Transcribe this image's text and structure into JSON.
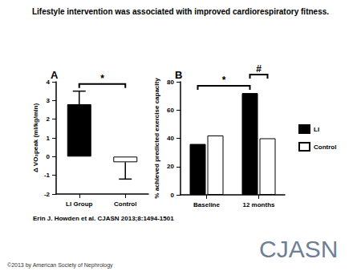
{
  "title": "Lifestyle intervention was associated with improved cardiorespiratory fitness.",
  "citation": "Erin J. Howden et al. CJASN 2013;8:1494-1501",
  "copyright": "©2013 by American Society of Nephrology",
  "logo": "CJASN",
  "chart_data": [
    {
      "panel": "A",
      "type": "bar",
      "categories": [
        "LI Group",
        "Control"
      ],
      "values": [
        2.8,
        -0.3
      ],
      "errors": [
        0.7,
        0.9
      ],
      "colors": [
        "#000000",
        "#ffffff"
      ],
      "y_label": "Δ VO₂peak (ml/kg/min)",
      "ylim": [
        -2,
        4
      ],
      "yticks": [
        -2,
        -1,
        0,
        1,
        2,
        3,
        4
      ],
      "grid": false,
      "significance": [
        {
          "label": "*",
          "from": {
            "category": "LI Group"
          },
          "to": {
            "category": "Control"
          }
        }
      ]
    },
    {
      "panel": "B",
      "type": "bar",
      "categories": [
        "Baseline",
        "12 months"
      ],
      "series": [
        {
          "name": "LI",
          "color": "#000000",
          "values": [
            36,
            72
          ]
        },
        {
          "name": "Control",
          "color": "#ffffff",
          "values": [
            42,
            40
          ]
        }
      ],
      "y_label": "% achieved predicted exercise capacity",
      "ylim": [
        0,
        80
      ],
      "yticks": [
        0,
        20,
        40,
        60,
        80
      ],
      "grid": false,
      "legend": "right",
      "significance": [
        {
          "label": "*",
          "from": {
            "category": "Baseline",
            "series": "LI"
          },
          "to": {
            "category": "12 months",
            "series": "LI"
          }
        },
        {
          "label": "#",
          "from": {
            "category": "12 months",
            "series": "LI"
          },
          "to": {
            "category": "12 months",
            "series": "Control"
          }
        }
      ]
    }
  ]
}
